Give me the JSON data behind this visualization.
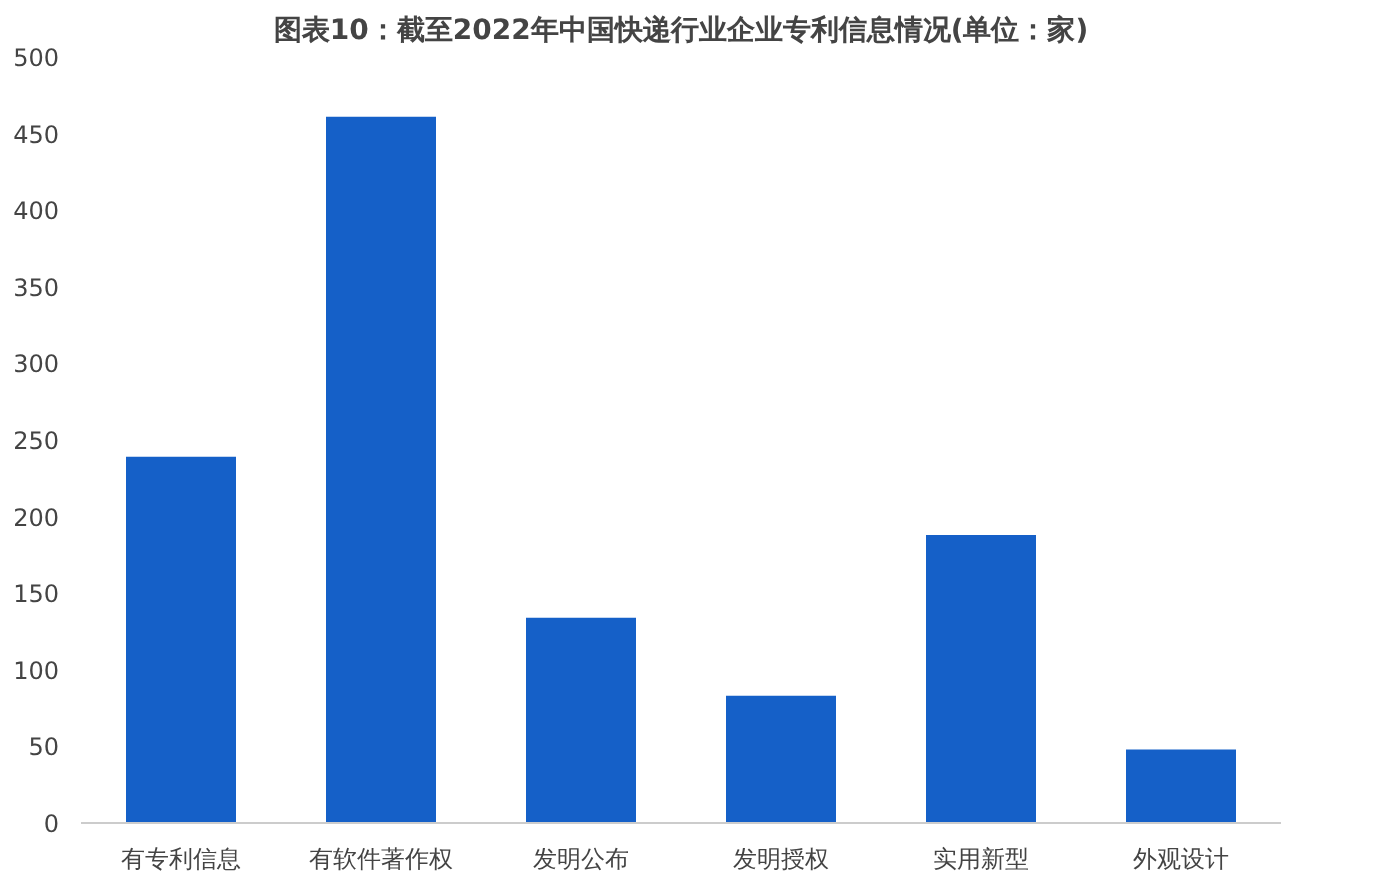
{
  "chart_data": {
    "type": "bar",
    "title": "图表10：截至2022年中国快递行业企业专利信息情况(单位：家)",
    "categories": [
      "有专利信息",
      "有软件著作权",
      "发明公布",
      "发明授权",
      "实用新型",
      "外观设计"
    ],
    "values": [
      239,
      461,
      134,
      83,
      188,
      48
    ],
    "color": "#1560c8",
    "ylim": [
      0,
      500
    ],
    "yticks": [
      0,
      50,
      100,
      150,
      200,
      250,
      300,
      350,
      400,
      450,
      500
    ],
    "grid": false
  }
}
